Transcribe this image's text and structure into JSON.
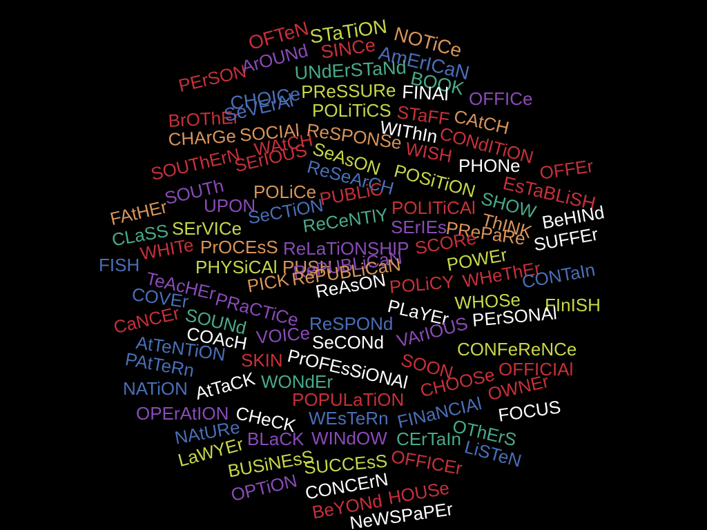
{
  "palette": {
    "red": "#c8303a",
    "yellow": "#c8d84a",
    "tan": "#d9955a",
    "purple": "#8a4bb8",
    "blue": "#4a6fb8",
    "teal": "#4aaa8a",
    "white": "#ffffff"
  },
  "words": [
    {
      "text": "OFTeN",
      "color": "red"
    },
    {
      "text": "STaTiON",
      "color": "yellow"
    },
    {
      "text": "NOTiCe",
      "color": "tan"
    },
    {
      "text": "ArOUNd",
      "color": "purple"
    },
    {
      "text": "SINCe",
      "color": "red"
    },
    {
      "text": "AmErICaN",
      "color": "blue"
    },
    {
      "text": "PErSON",
      "color": "red"
    },
    {
      "text": "UNdErSTaNd",
      "color": "teal"
    },
    {
      "text": "BOOK",
      "color": "teal"
    },
    {
      "text": "CHOICe",
      "color": "blue"
    },
    {
      "text": "PReSSURe",
      "color": "yellow"
    },
    {
      "text": "FINAl",
      "color": "white"
    },
    {
      "text": "OFFICe",
      "color": "purple"
    },
    {
      "text": "BrOThEr",
      "color": "red"
    },
    {
      "text": "SeVErAl",
      "color": "blue"
    },
    {
      "text": "POLiTiCS",
      "color": "yellow"
    },
    {
      "text": "STaFF",
      "color": "red"
    },
    {
      "text": "CAtCH",
      "color": "tan"
    },
    {
      "text": "CHArGe",
      "color": "tan"
    },
    {
      "text": "SOCIAl",
      "color": "tan"
    },
    {
      "text": "ReSPONSe",
      "color": "tan"
    },
    {
      "text": "WIThIn",
      "color": "white"
    },
    {
      "text": "CONdITiON",
      "color": "red"
    },
    {
      "text": "WAtCH",
      "color": "red"
    },
    {
      "text": "SeAsON",
      "color": "yellow"
    },
    {
      "text": "WISH",
      "color": "red"
    },
    {
      "text": "SOUThErN",
      "color": "red"
    },
    {
      "text": "SErIOUS",
      "color": "red"
    },
    {
      "text": "ReSeArCH",
      "color": "blue"
    },
    {
      "text": "POSiTiON",
      "color": "yellow"
    },
    {
      "text": "PHONe",
      "color": "white"
    },
    {
      "text": "OFFEr",
      "color": "red"
    },
    {
      "text": "SOUTh",
      "color": "purple"
    },
    {
      "text": "POLiCe",
      "color": "tan"
    },
    {
      "text": "PUBLiC",
      "color": "red"
    },
    {
      "text": "SHOW",
      "color": "teal"
    },
    {
      "text": "EsTaBLiSH",
      "color": "red"
    },
    {
      "text": "FAtHEr",
      "color": "tan"
    },
    {
      "text": "UPON",
      "color": "purple"
    },
    {
      "text": "SeCTiON",
      "color": "blue"
    },
    {
      "text": "POLITiCAl",
      "color": "red"
    },
    {
      "text": "ThINK",
      "color": "tan"
    },
    {
      "text": "BeHINd",
      "color": "white"
    },
    {
      "text": "CLaSS",
      "color": "teal"
    },
    {
      "text": "SErVICe",
      "color": "yellow"
    },
    {
      "text": "ReCeNTlY",
      "color": "teal"
    },
    {
      "text": "SErIEs",
      "color": "purple"
    },
    {
      "text": "PRePaRe",
      "color": "tan"
    },
    {
      "text": "SUFFEr",
      "color": "white"
    },
    {
      "text": "FISH",
      "color": "blue"
    },
    {
      "text": "WHITe",
      "color": "red"
    },
    {
      "text": "PrOCEsS",
      "color": "tan"
    },
    {
      "text": "ReLaTiONSHIP",
      "color": "purple"
    },
    {
      "text": "SCORe",
      "color": "red"
    },
    {
      "text": "PHYSiCAl",
      "color": "yellow"
    },
    {
      "text": "PUSH",
      "color": "tan"
    },
    {
      "text": "RePUBLiCaN",
      "color": "purple"
    },
    {
      "text": "POWEr",
      "color": "yellow"
    },
    {
      "text": "TeAcHEr",
      "color": "purple"
    },
    {
      "text": "PICK",
      "color": "tan"
    },
    {
      "text": "RePUBLiCaN",
      "color": "tan"
    },
    {
      "text": "POLiCY",
      "color": "red"
    },
    {
      "text": "WHeThEr",
      "color": "red"
    },
    {
      "text": "CONTaIn",
      "color": "blue"
    },
    {
      "text": "COVEr",
      "color": "blue"
    },
    {
      "text": "PRaCTiCe",
      "color": "purple"
    },
    {
      "text": "ReAsON",
      "color": "white"
    },
    {
      "text": "PLaYEr",
      "color": "white"
    },
    {
      "text": "WHOSe",
      "color": "yellow"
    },
    {
      "text": "FInISH",
      "color": "yellow"
    },
    {
      "text": "SOUNd",
      "color": "teal"
    },
    {
      "text": "ReSPONd",
      "color": "blue"
    },
    {
      "text": "PErSONAl",
      "color": "white"
    },
    {
      "text": "CaNCEr",
      "color": "red"
    },
    {
      "text": "COAcH",
      "color": "white"
    },
    {
      "text": "VOICe",
      "color": "purple"
    },
    {
      "text": "VArIOUS",
      "color": "purple"
    },
    {
      "text": "AtTeNTiON",
      "color": "blue"
    },
    {
      "text": "SeCONd",
      "color": "white"
    },
    {
      "text": "CONFeReNCe",
      "color": "yellow"
    },
    {
      "text": "PAtTeRn",
      "color": "blue"
    },
    {
      "text": "SKIN",
      "color": "red"
    },
    {
      "text": "PrOFEsSiONAl",
      "color": "white"
    },
    {
      "text": "SOON",
      "color": "red"
    },
    {
      "text": "OFFICIAl",
      "color": "red"
    },
    {
      "text": "NATiON",
      "color": "blue"
    },
    {
      "text": "AtTaCK",
      "color": "white"
    },
    {
      "text": "WONdEr",
      "color": "teal"
    },
    {
      "text": "CHOOSe",
      "color": "red"
    },
    {
      "text": "OWNEr",
      "color": "red"
    },
    {
      "text": "POPULaTiON",
      "color": "red"
    },
    {
      "text": "OPErAtION",
      "color": "purple"
    },
    {
      "text": "CHeCK",
      "color": "white"
    },
    {
      "text": "WEsTeRn",
      "color": "blue"
    },
    {
      "text": "FINaNCIAl",
      "color": "blue"
    },
    {
      "text": "FOCUS",
      "color": "white"
    },
    {
      "text": "NAtURe",
      "color": "blue"
    },
    {
      "text": "OThErS",
      "color": "teal"
    },
    {
      "text": "BLaCK",
      "color": "purple"
    },
    {
      "text": "WINdOW",
      "color": "purple"
    },
    {
      "text": "CErTaIn",
      "color": "teal"
    },
    {
      "text": "LaWYEr",
      "color": "yellow"
    },
    {
      "text": "LiSTeN",
      "color": "blue"
    },
    {
      "text": "BUSiNEsS",
      "color": "yellow"
    },
    {
      "text": "SUCCEsS",
      "color": "yellow"
    },
    {
      "text": "OFFICEr",
      "color": "red"
    },
    {
      "text": "OPTiON",
      "color": "purple"
    },
    {
      "text": "CONCErN",
      "color": "white"
    },
    {
      "text": "BeYONd",
      "color": "red"
    },
    {
      "text": "HOUSe",
      "color": "red"
    },
    {
      "text": "NeWSPaPEr",
      "color": "white"
    }
  ]
}
